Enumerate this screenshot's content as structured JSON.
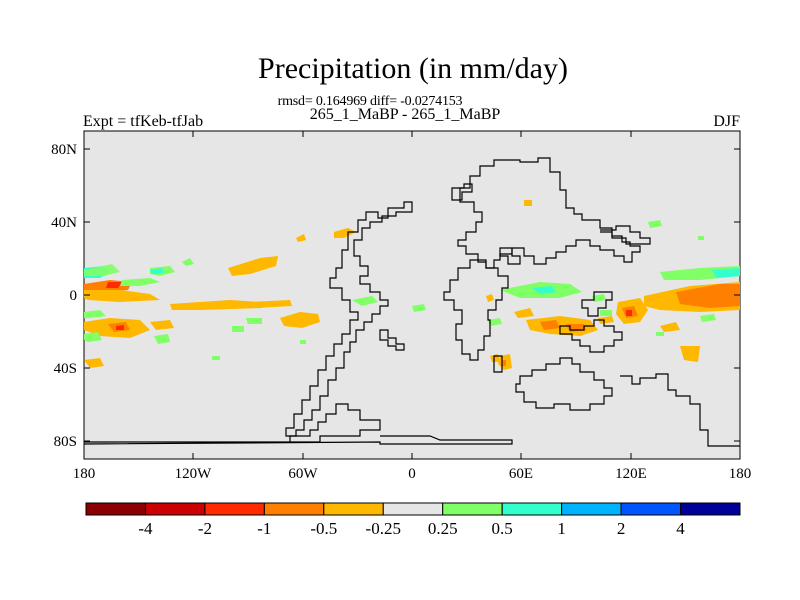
{
  "title": "Precipitation (in mm/day)",
  "stats_line": "rmsd= 0.164969 diff= -0.0274153",
  "case_line": "265_1_MaBP - 265_1_MaBP",
  "left_label": "Expt = tfKeb-tfJab",
  "right_label": "DJF",
  "map": {
    "background_color": "#e6e6e6",
    "x_ticks": [
      "180",
      "120W",
      "60W",
      "0",
      "60E",
      "120E",
      "180"
    ],
    "y_ticks": [
      "80N",
      "40N",
      "0",
      "40S",
      "80S"
    ]
  },
  "colorbar": {
    "colors": [
      "#8b0000",
      "#cc0000",
      "#ff2a00",
      "#ff7f00",
      "#ffb800",
      "#e6e6e6",
      "#80ff66",
      "#33ffcc",
      "#00b3ff",
      "#0055ff",
      "#000099"
    ],
    "labels": [
      "-4",
      "-2",
      "-1",
      "-0.5",
      "-0.25",
      "0.25",
      "0.5",
      "1",
      "2",
      "4"
    ]
  },
  "legend_classes": {
    "strong_dry": "#ff5500",
    "dry": "#ffb800",
    "wet": "#80ff66",
    "wetter": "#33ffcc"
  }
}
